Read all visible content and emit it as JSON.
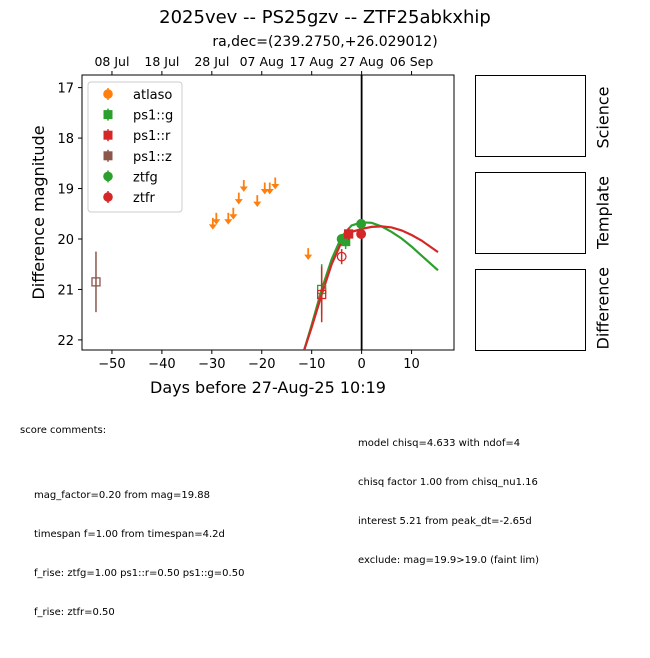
{
  "title": "2025vev -- PS25gzv -- ZTF25abkxhip",
  "subtitle": "ra,dec=(239.2750,+26.029012)",
  "colors": {
    "atlaso": "#ff7f0e",
    "ps1g": "#2ca02c",
    "ps1r": "#d62728",
    "ps1z": "#8c564b",
    "ztfg": "#2ca02c",
    "ztfr": "#d62728"
  },
  "chart_data": {
    "type": "scatter",
    "xlabel": "Days before 27-Aug-25 10:19",
    "ylabel": "Difference magnitude",
    "xlim": [
      -56,
      18.5
    ],
    "ylim": [
      22.2,
      16.75
    ],
    "y_inverted": true,
    "xticks": [
      -50,
      -40,
      -30,
      -20,
      -10,
      0,
      10
    ],
    "yticks": [
      17,
      18,
      19,
      20,
      21,
      22
    ],
    "top_axis_ticks": [
      {
        "label": "08 Jul",
        "x": -50
      },
      {
        "label": "18 Jul",
        "x": -40
      },
      {
        "label": "28 Jul",
        "x": -30
      },
      {
        "label": "07 Aug",
        "x": -20
      },
      {
        "label": "17 Aug",
        "x": -10
      },
      {
        "label": "27 Aug",
        "x": 0
      },
      {
        "label": "06 Sep",
        "x": 10
      }
    ],
    "vline_x": 0,
    "legend_position": "upper-left",
    "legend": [
      {
        "label": "atlaso",
        "marker": "circle",
        "color_key": "atlaso"
      },
      {
        "label": "ps1::g",
        "marker": "square",
        "color_key": "ps1g"
      },
      {
        "label": "ps1::r",
        "marker": "square",
        "color_key": "ps1r"
      },
      {
        "label": "ps1::z",
        "marker": "square",
        "color_key": "ps1z"
      },
      {
        "label": "ztfg",
        "marker": "circle",
        "color_key": "ztfg"
      },
      {
        "label": "ztfr",
        "marker": "circle",
        "color_key": "ztfr"
      }
    ],
    "upper_limits_atlaso": [
      {
        "x": -29.8,
        "y": 19.7
      },
      {
        "x": -29.1,
        "y": 19.6
      },
      {
        "x": -26.7,
        "y": 19.6
      },
      {
        "x": -25.7,
        "y": 19.5
      },
      {
        "x": -24.6,
        "y": 19.2
      },
      {
        "x": -23.6,
        "y": 18.95
      },
      {
        "x": -20.9,
        "y": 19.25
      },
      {
        "x": -19.4,
        "y": 19.0
      },
      {
        "x": -18.4,
        "y": 19.0
      },
      {
        "x": -17.3,
        "y": 18.9
      },
      {
        "x": -10.7,
        "y": 20.3
      }
    ],
    "points": [
      {
        "band": "ps1z",
        "x": -53.2,
        "y": 20.85,
        "err": 0.6,
        "marker": "square",
        "filled": false
      },
      {
        "band": "ps1g",
        "x": -8.0,
        "y": 21.0,
        "err": 0.5,
        "marker": "square",
        "filled": false
      },
      {
        "band": "ps1r",
        "x": -8.0,
        "y": 21.1,
        "err": 0.55,
        "marker": "square",
        "filled": false
      },
      {
        "band": "ztfr",
        "x": -4.0,
        "y": 20.35,
        "err": 0.15,
        "marker": "circle",
        "filled": false
      },
      {
        "band": "ztfg",
        "x": -4.0,
        "y": 20.0,
        "err": 0.1,
        "marker": "circle",
        "filled": true
      },
      {
        "band": "ps1g",
        "x": -3.2,
        "y": 20.05,
        "err": 0.15,
        "marker": "square",
        "filled": true
      },
      {
        "band": "ps1r",
        "x": -2.6,
        "y": 19.9,
        "err": 0.12,
        "marker": "square",
        "filled": true
      },
      {
        "band": "ztfg",
        "x": -0.1,
        "y": 19.7,
        "err": 0.08,
        "marker": "circle",
        "filled": true
      },
      {
        "band": "ztfr",
        "x": -0.1,
        "y": 19.9,
        "err": 0.08,
        "marker": "circle",
        "filled": true
      }
    ],
    "model_curves": [
      {
        "band": "ztfg",
        "x": [
          -11.5,
          -10,
          -8,
          -6,
          -4,
          -2,
          0,
          2,
          4,
          6,
          8,
          10,
          12,
          15.3
        ],
        "y": [
          22.2,
          21.7,
          21.0,
          20.4,
          19.95,
          19.73,
          19.67,
          19.68,
          19.75,
          19.86,
          19.99,
          20.15,
          20.33,
          20.62
        ]
      },
      {
        "band": "ztfr",
        "x": [
          -11.5,
          -10,
          -8,
          -6,
          -4,
          -2,
          0,
          2,
          4,
          6,
          8,
          10,
          12,
          15.3
        ],
        "y": [
          22.2,
          21.75,
          21.1,
          20.5,
          20.05,
          19.86,
          19.8,
          19.76,
          19.75,
          19.77,
          19.83,
          19.92,
          20.03,
          20.26
        ]
      }
    ]
  },
  "panels": [
    {
      "label": "Science"
    },
    {
      "label": "Template"
    },
    {
      "label": "Difference"
    }
  ],
  "comments_left": {
    "header": "score comments:",
    "lines": [
      "mag_factor=0.20 from mag=19.88",
      "timespan f=1.00 from timespan=4.2d",
      "f_rise: ztfg=1.00 ps1::r=0.50 ps1::g=0.50",
      "f_rise: ztfr=0.50"
    ]
  },
  "comments_right": {
    "lines": [
      "model chisq=4.633 with ndof=4",
      "chisq factor 1.00 from chisq_nu1.16",
      "interest 5.21 from peak_dt=-2.65d",
      "exclude: mag=19.9>19.0 (faint lim)"
    ]
  }
}
